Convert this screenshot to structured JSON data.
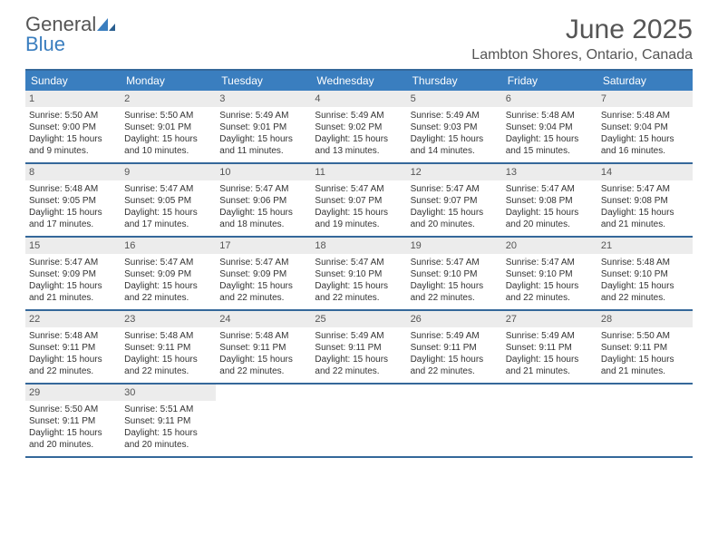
{
  "brand": {
    "part1": "General",
    "part2": "Blue"
  },
  "title": "June 2025",
  "location": "Lambton Shores, Ontario, Canada",
  "colors": {
    "header_bg": "#3a7ebf",
    "border": "#35689a",
    "daynum_bg": "#ececec",
    "text": "#333333",
    "muted": "#555555"
  },
  "dow": [
    "Sunday",
    "Monday",
    "Tuesday",
    "Wednesday",
    "Thursday",
    "Friday",
    "Saturday"
  ],
  "weeks": [
    [
      {
        "n": "1",
        "sr": "Sunrise: 5:50 AM",
        "ss": "Sunset: 9:00 PM",
        "d1": "Daylight: 15 hours",
        "d2": "and 9 minutes."
      },
      {
        "n": "2",
        "sr": "Sunrise: 5:50 AM",
        "ss": "Sunset: 9:01 PM",
        "d1": "Daylight: 15 hours",
        "d2": "and 10 minutes."
      },
      {
        "n": "3",
        "sr": "Sunrise: 5:49 AM",
        "ss": "Sunset: 9:01 PM",
        "d1": "Daylight: 15 hours",
        "d2": "and 11 minutes."
      },
      {
        "n": "4",
        "sr": "Sunrise: 5:49 AM",
        "ss": "Sunset: 9:02 PM",
        "d1": "Daylight: 15 hours",
        "d2": "and 13 minutes."
      },
      {
        "n": "5",
        "sr": "Sunrise: 5:49 AM",
        "ss": "Sunset: 9:03 PM",
        "d1": "Daylight: 15 hours",
        "d2": "and 14 minutes."
      },
      {
        "n": "6",
        "sr": "Sunrise: 5:48 AM",
        "ss": "Sunset: 9:04 PM",
        "d1": "Daylight: 15 hours",
        "d2": "and 15 minutes."
      },
      {
        "n": "7",
        "sr": "Sunrise: 5:48 AM",
        "ss": "Sunset: 9:04 PM",
        "d1": "Daylight: 15 hours",
        "d2": "and 16 minutes."
      }
    ],
    [
      {
        "n": "8",
        "sr": "Sunrise: 5:48 AM",
        "ss": "Sunset: 9:05 PM",
        "d1": "Daylight: 15 hours",
        "d2": "and 17 minutes."
      },
      {
        "n": "9",
        "sr": "Sunrise: 5:47 AM",
        "ss": "Sunset: 9:05 PM",
        "d1": "Daylight: 15 hours",
        "d2": "and 17 minutes."
      },
      {
        "n": "10",
        "sr": "Sunrise: 5:47 AM",
        "ss": "Sunset: 9:06 PM",
        "d1": "Daylight: 15 hours",
        "d2": "and 18 minutes."
      },
      {
        "n": "11",
        "sr": "Sunrise: 5:47 AM",
        "ss": "Sunset: 9:07 PM",
        "d1": "Daylight: 15 hours",
        "d2": "and 19 minutes."
      },
      {
        "n": "12",
        "sr": "Sunrise: 5:47 AM",
        "ss": "Sunset: 9:07 PM",
        "d1": "Daylight: 15 hours",
        "d2": "and 20 minutes."
      },
      {
        "n": "13",
        "sr": "Sunrise: 5:47 AM",
        "ss": "Sunset: 9:08 PM",
        "d1": "Daylight: 15 hours",
        "d2": "and 20 minutes."
      },
      {
        "n": "14",
        "sr": "Sunrise: 5:47 AM",
        "ss": "Sunset: 9:08 PM",
        "d1": "Daylight: 15 hours",
        "d2": "and 21 minutes."
      }
    ],
    [
      {
        "n": "15",
        "sr": "Sunrise: 5:47 AM",
        "ss": "Sunset: 9:09 PM",
        "d1": "Daylight: 15 hours",
        "d2": "and 21 minutes."
      },
      {
        "n": "16",
        "sr": "Sunrise: 5:47 AM",
        "ss": "Sunset: 9:09 PM",
        "d1": "Daylight: 15 hours",
        "d2": "and 22 minutes."
      },
      {
        "n": "17",
        "sr": "Sunrise: 5:47 AM",
        "ss": "Sunset: 9:09 PM",
        "d1": "Daylight: 15 hours",
        "d2": "and 22 minutes."
      },
      {
        "n": "18",
        "sr": "Sunrise: 5:47 AM",
        "ss": "Sunset: 9:10 PM",
        "d1": "Daylight: 15 hours",
        "d2": "and 22 minutes."
      },
      {
        "n": "19",
        "sr": "Sunrise: 5:47 AM",
        "ss": "Sunset: 9:10 PM",
        "d1": "Daylight: 15 hours",
        "d2": "and 22 minutes."
      },
      {
        "n": "20",
        "sr": "Sunrise: 5:47 AM",
        "ss": "Sunset: 9:10 PM",
        "d1": "Daylight: 15 hours",
        "d2": "and 22 minutes."
      },
      {
        "n": "21",
        "sr": "Sunrise: 5:48 AM",
        "ss": "Sunset: 9:10 PM",
        "d1": "Daylight: 15 hours",
        "d2": "and 22 minutes."
      }
    ],
    [
      {
        "n": "22",
        "sr": "Sunrise: 5:48 AM",
        "ss": "Sunset: 9:11 PM",
        "d1": "Daylight: 15 hours",
        "d2": "and 22 minutes."
      },
      {
        "n": "23",
        "sr": "Sunrise: 5:48 AM",
        "ss": "Sunset: 9:11 PM",
        "d1": "Daylight: 15 hours",
        "d2": "and 22 minutes."
      },
      {
        "n": "24",
        "sr": "Sunrise: 5:48 AM",
        "ss": "Sunset: 9:11 PM",
        "d1": "Daylight: 15 hours",
        "d2": "and 22 minutes."
      },
      {
        "n": "25",
        "sr": "Sunrise: 5:49 AM",
        "ss": "Sunset: 9:11 PM",
        "d1": "Daylight: 15 hours",
        "d2": "and 22 minutes."
      },
      {
        "n": "26",
        "sr": "Sunrise: 5:49 AM",
        "ss": "Sunset: 9:11 PM",
        "d1": "Daylight: 15 hours",
        "d2": "and 22 minutes."
      },
      {
        "n": "27",
        "sr": "Sunrise: 5:49 AM",
        "ss": "Sunset: 9:11 PM",
        "d1": "Daylight: 15 hours",
        "d2": "and 21 minutes."
      },
      {
        "n": "28",
        "sr": "Sunrise: 5:50 AM",
        "ss": "Sunset: 9:11 PM",
        "d1": "Daylight: 15 hours",
        "d2": "and 21 minutes."
      }
    ],
    [
      {
        "n": "29",
        "sr": "Sunrise: 5:50 AM",
        "ss": "Sunset: 9:11 PM",
        "d1": "Daylight: 15 hours",
        "d2": "and 20 minutes."
      },
      {
        "n": "30",
        "sr": "Sunrise: 5:51 AM",
        "ss": "Sunset: 9:11 PM",
        "d1": "Daylight: 15 hours",
        "d2": "and 20 minutes."
      },
      null,
      null,
      null,
      null,
      null
    ]
  ]
}
